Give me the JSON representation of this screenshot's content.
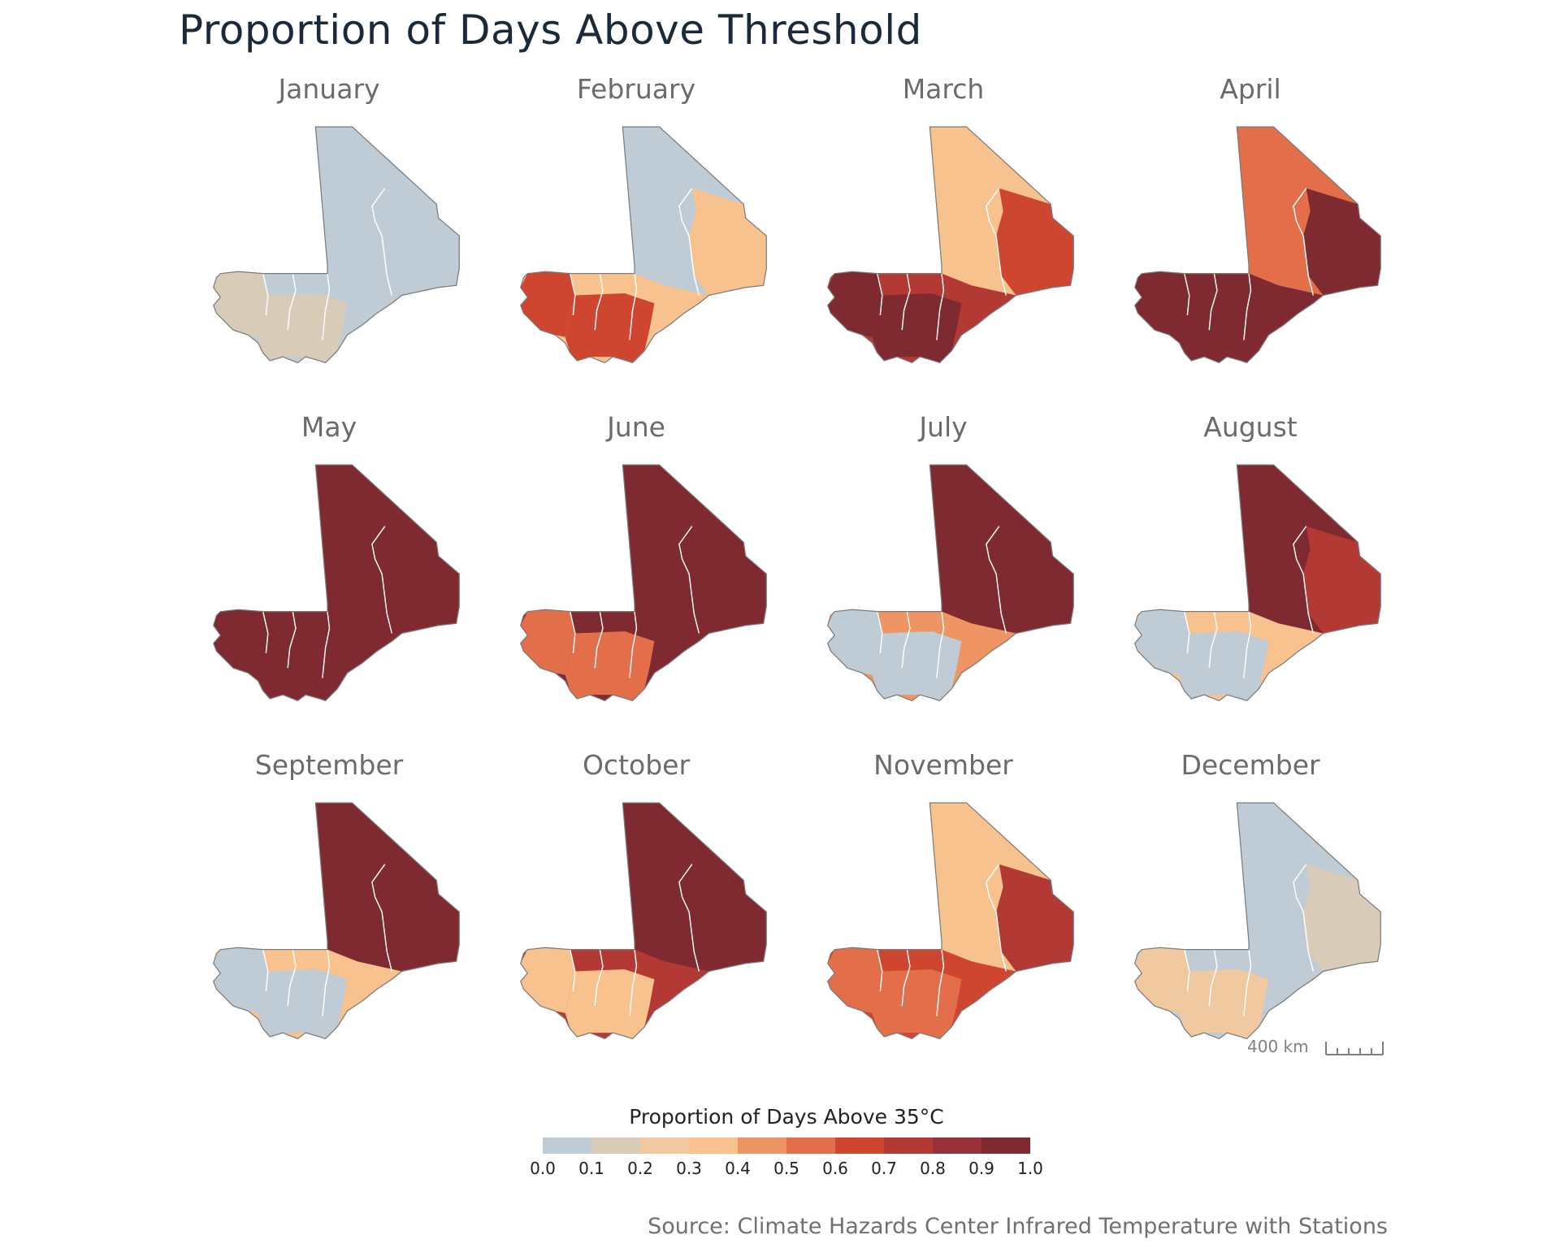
{
  "title": "Proportion of Days Above Threshold",
  "legend": {
    "title": "Proportion of Days Above 35°C",
    "ticks": [
      "0.0",
      "0.1",
      "0.2",
      "0.3",
      "0.4",
      "0.5",
      "0.6",
      "0.7",
      "0.8",
      "0.9",
      "1.0"
    ],
    "colors": [
      "#bfcbd5",
      "#d8cbb8",
      "#f0c9a0",
      "#f8c28e",
      "#ee9563",
      "#e26f4a",
      "#cf4630",
      "#b33a34",
      "#983238",
      "#7f2a30"
    ]
  },
  "scale_bar": {
    "label": "400 km"
  },
  "source": "Source: Climate Hazards Center Infrared Temperature with Stations",
  "months": [
    {
      "name": "January",
      "north": 0.0,
      "center": 0.0,
      "east": 0.0,
      "south": 0.1
    },
    {
      "name": "February",
      "north": 0.0,
      "center": 0.3,
      "east": 0.3,
      "south": 0.6
    },
    {
      "name": "March",
      "north": 0.3,
      "center": 0.7,
      "east": 0.6,
      "south": 0.9
    },
    {
      "name": "April",
      "north": 0.5,
      "center": 0.9,
      "east": 0.95,
      "south": 0.95
    },
    {
      "name": "May",
      "north": 0.95,
      "center": 0.95,
      "east": 0.95,
      "south": 0.9
    },
    {
      "name": "June",
      "north": 0.95,
      "center": 0.9,
      "east": 0.95,
      "south": 0.5
    },
    {
      "name": "July",
      "north": 0.95,
      "center": 0.4,
      "east": 0.9,
      "south": 0.0
    },
    {
      "name": "August",
      "north": 0.9,
      "center": 0.3,
      "east": 0.7,
      "south": 0.0
    },
    {
      "name": "September",
      "north": 0.9,
      "center": 0.3,
      "east": 0.9,
      "south": 0.0
    },
    {
      "name": "October",
      "north": 0.9,
      "center": 0.7,
      "east": 0.95,
      "south": 0.3
    },
    {
      "name": "November",
      "north": 0.3,
      "center": 0.6,
      "east": 0.7,
      "south": 0.5
    },
    {
      "name": "December",
      "north": 0.0,
      "center": 0.0,
      "east": 0.1,
      "south": 0.2
    }
  ]
}
